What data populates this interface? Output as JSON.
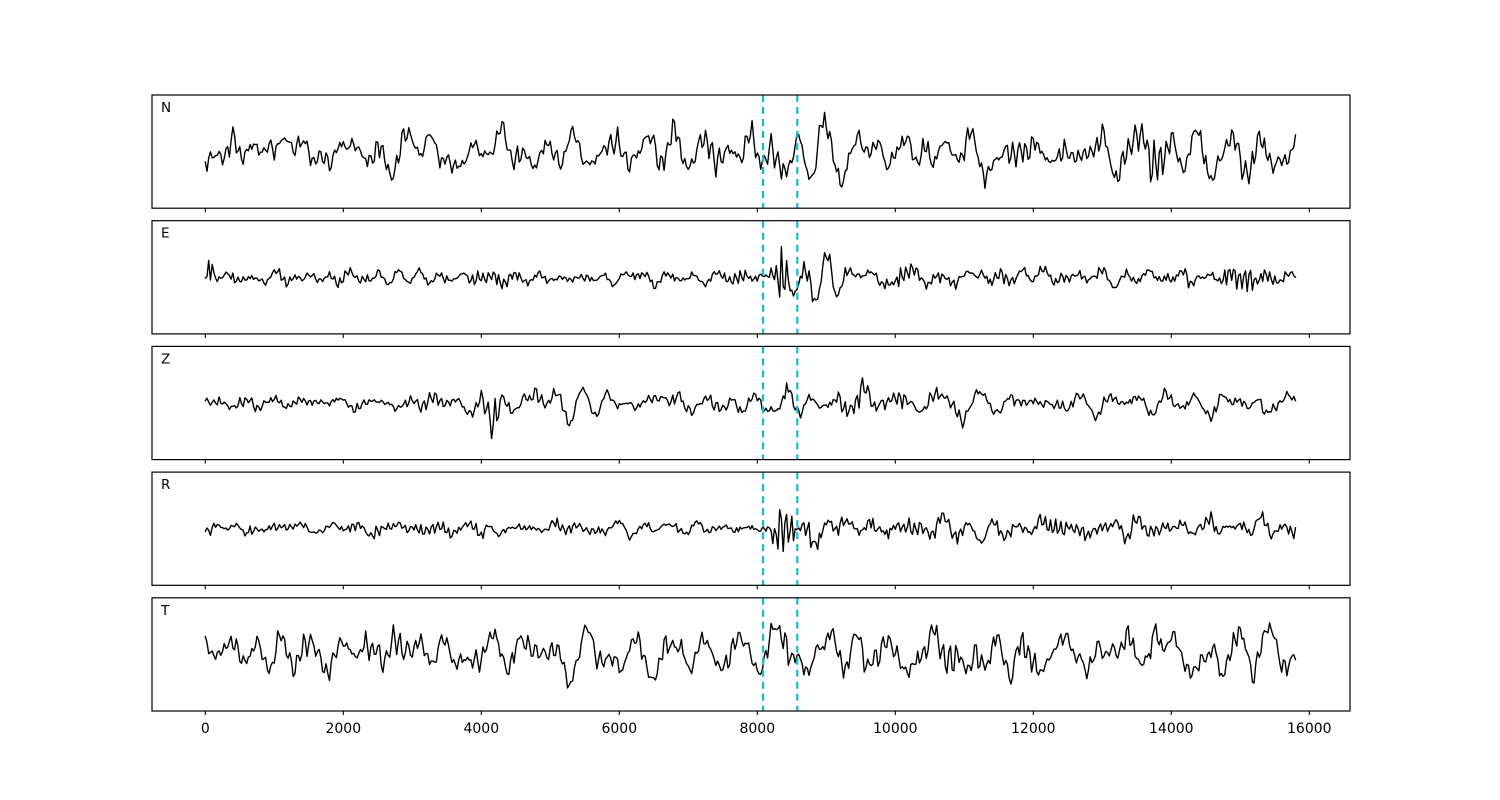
{
  "figure": {
    "background": "#ffffff"
  },
  "chart_data": {
    "type": "line",
    "title": "",
    "xlabel": "",
    "ylabel": "",
    "grid": false,
    "legend": null,
    "panel_labels": [
      "N",
      "E",
      "Z",
      "R",
      "T"
    ],
    "x_ticks": [
      "0",
      "2000",
      "4000",
      "6000",
      "8000",
      "10000",
      "12000",
      "14000",
      "16000"
    ],
    "x_tick_values": [
      0,
      2000,
      4000,
      6000,
      8000,
      10000,
      12000,
      14000,
      16000
    ],
    "xlim": [
      -772,
      16590
    ],
    "x_start": 0,
    "x_end": 15800,
    "trace_color": "#000000",
    "axis_color": "#000000",
    "event_lines": {
      "xs": [
        8085,
        8580
      ],
      "color": "#16bcc8",
      "style": "dashed",
      "dash": [
        7,
        5
      ],
      "width": 2.2
    },
    "traces": [
      {
        "label": "N",
        "seed": 101,
        "period": 95,
        "envelope": [
          [
            0,
            22
          ],
          [
            1200,
            27
          ],
          [
            2200,
            23
          ],
          [
            3200,
            25
          ],
          [
            4200,
            24
          ],
          [
            5200,
            26
          ],
          [
            6200,
            24
          ],
          [
            7200,
            26
          ],
          [
            8000,
            27
          ],
          [
            8400,
            26
          ],
          [
            8800,
            32
          ],
          [
            9600,
            33
          ],
          [
            10300,
            26
          ],
          [
            11200,
            31
          ],
          [
            11600,
            26
          ],
          [
            12500,
            24
          ],
          [
            13200,
            26
          ],
          [
            13620,
            26
          ],
          [
            13725,
            54
          ],
          [
            13850,
            30
          ],
          [
            14300,
            31
          ],
          [
            15000,
            27
          ],
          [
            15800,
            24
          ]
        ]
      },
      {
        "label": "E",
        "seed": 202,
        "period": 78,
        "envelope": [
          [
            0,
            2
          ],
          [
            60,
            32
          ],
          [
            150,
            10
          ],
          [
            500,
            9
          ],
          [
            1500,
            8
          ],
          [
            3000,
            9
          ],
          [
            4500,
            8
          ],
          [
            6000,
            9
          ],
          [
            7500,
            8
          ],
          [
            8100,
            9
          ],
          [
            8270,
            24
          ],
          [
            8350,
            52
          ],
          [
            8470,
            46
          ],
          [
            8580,
            20
          ],
          [
            8700,
            14
          ],
          [
            8870,
            27
          ],
          [
            9050,
            21
          ],
          [
            9350,
            14
          ],
          [
            9800,
            15
          ],
          [
            10600,
            12
          ],
          [
            11400,
            14
          ],
          [
            12300,
            11
          ],
          [
            13200,
            12
          ],
          [
            14200,
            12
          ],
          [
            15100,
            13
          ],
          [
            15800,
            8
          ]
        ]
      },
      {
        "label": "Z",
        "seed": 303,
        "period": 88,
        "envelope": [
          [
            0,
            9
          ],
          [
            400,
            12
          ],
          [
            1200,
            10
          ],
          [
            2200,
            11
          ],
          [
            3200,
            10
          ],
          [
            3900,
            12
          ],
          [
            4020,
            22
          ],
          [
            4110,
            48
          ],
          [
            4250,
            36
          ],
          [
            4450,
            20
          ],
          [
            4800,
            15
          ],
          [
            5400,
            12
          ],
          [
            6400,
            12
          ],
          [
            6950,
            24
          ],
          [
            7150,
            14
          ],
          [
            7800,
            12
          ],
          [
            8250,
            15
          ],
          [
            8430,
            27
          ],
          [
            8600,
            17
          ],
          [
            8900,
            15
          ],
          [
            9300,
            21
          ],
          [
            9700,
            14
          ],
          [
            10400,
            13
          ],
          [
            11050,
            22
          ],
          [
            11350,
            14
          ],
          [
            12200,
            12
          ],
          [
            13100,
            12
          ],
          [
            14000,
            13
          ],
          [
            15100,
            19
          ],
          [
            15500,
            15
          ],
          [
            15800,
            12
          ]
        ]
      },
      {
        "label": "R",
        "seed": 404,
        "period": 80,
        "envelope": [
          [
            0,
            3
          ],
          [
            55,
            30
          ],
          [
            140,
            11
          ],
          [
            500,
            9
          ],
          [
            1600,
            8
          ],
          [
            3100,
            9
          ],
          [
            4600,
            8
          ],
          [
            6100,
            9
          ],
          [
            7600,
            8
          ],
          [
            8150,
            11
          ],
          [
            8300,
            48
          ],
          [
            8430,
            46
          ],
          [
            8560,
            22
          ],
          [
            8700,
            15
          ],
          [
            8870,
            26
          ],
          [
            9050,
            19
          ],
          [
            9400,
            14
          ],
          [
            10100,
            12
          ],
          [
            11000,
            13
          ],
          [
            12000,
            11
          ],
          [
            13000,
            12
          ],
          [
            14000,
            12
          ],
          [
            15000,
            13
          ],
          [
            15800,
            8
          ]
        ]
      },
      {
        "label": "T",
        "seed": 505,
        "period": 100,
        "envelope": [
          [
            0,
            24
          ],
          [
            900,
            28
          ],
          [
            1900,
            25
          ],
          [
            3100,
            24
          ],
          [
            4200,
            28
          ],
          [
            5300,
            26
          ],
          [
            6600,
            26
          ],
          [
            7600,
            27
          ],
          [
            8300,
            28
          ],
          [
            8700,
            32
          ],
          [
            9300,
            34
          ],
          [
            9900,
            31
          ],
          [
            10600,
            30
          ],
          [
            11300,
            32
          ],
          [
            12100,
            26
          ],
          [
            13000,
            27
          ],
          [
            13640,
            27
          ],
          [
            13730,
            50
          ],
          [
            13900,
            31
          ],
          [
            14600,
            30
          ],
          [
            15300,
            28
          ],
          [
            15800,
            24
          ]
        ]
      }
    ]
  }
}
